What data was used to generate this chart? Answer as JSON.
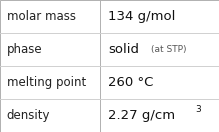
{
  "rows": [
    {
      "label": "molar mass",
      "value_main": "134 g/mol",
      "value_super": "",
      "value_small": ""
    },
    {
      "label": "phase",
      "value_main": "solid",
      "value_super": "",
      "value_small": "(at STP)"
    },
    {
      "label": "melting point",
      "value_main": "260 °C",
      "value_super": "",
      "value_small": ""
    },
    {
      "label": "density",
      "value_main": "2.27 g/cm",
      "value_super": "3",
      "value_small": ""
    }
  ],
  "label_fontsize": 8.5,
  "value_fontsize": 9.5,
  "small_fontsize": 6.5,
  "super_fontsize": 6.5,
  "background_color": "#ffffff",
  "border_color": "#b0b0b0",
  "line_color": "#d0d0d0",
  "col_split": 0.455,
  "label_color": "#222222",
  "value_color": "#111111",
  "small_color": "#555555"
}
